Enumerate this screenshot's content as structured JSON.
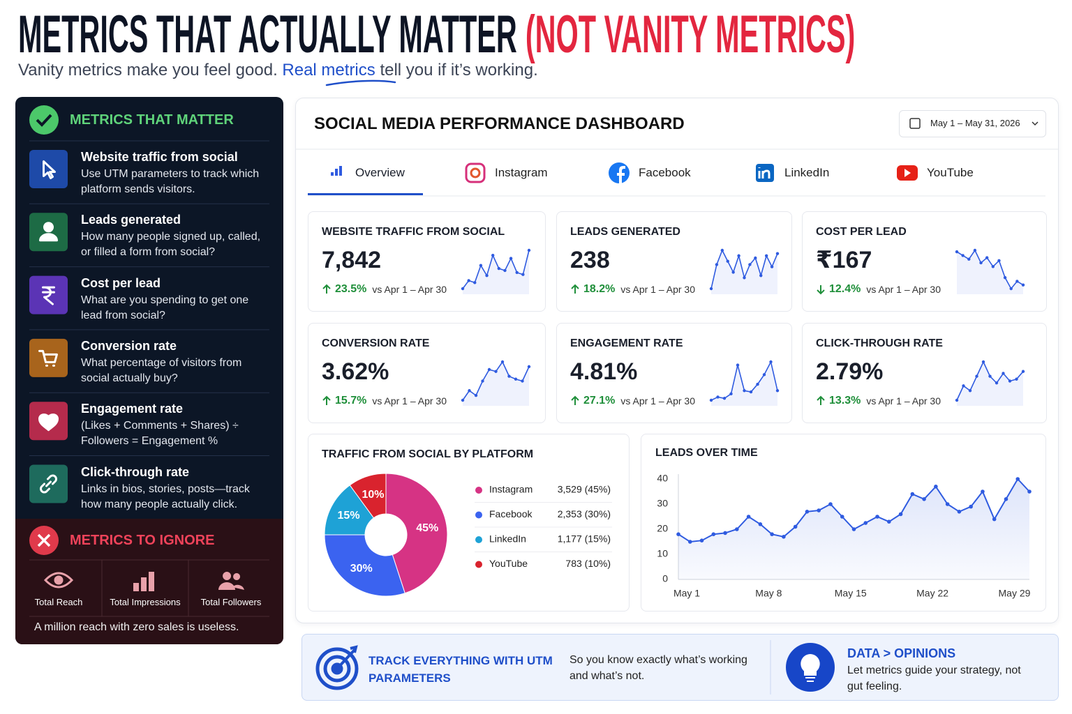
{
  "header": {
    "title": "METRICS THAT ACTUALLY MATTER",
    "title_accent": "(NOT VANITY METRICS)",
    "subtitle_start": "Vanity metrics make you feel good.",
    "subtitle_highlight": "Real metrics",
    "subtitle_end": "tell you if it’s working."
  },
  "matter": {
    "heading": "METRICS THAT MATTER",
    "items": [
      {
        "title": "Website traffic from social",
        "text": "Use UTM parameters to track which platform sends visitors."
      },
      {
        "title": "Leads generated",
        "text": "How many people signed up, called, or filled a form from social?"
      },
      {
        "title": "Cost per lead",
        "text": "What are you spending to get one lead from social?"
      },
      {
        "title": "Conversion rate",
        "text": "What percentage of visitors from social actually buy?"
      },
      {
        "title": "Engagement rate",
        "text": "(Likes + Comments + Shares) ÷ Followers = Engagement %"
      },
      {
        "title": "Click-through rate",
        "text": "Links in bios, stories, posts—track how many people actually click."
      }
    ]
  },
  "ignore": {
    "heading": "METRICS TO IGNORE",
    "items": [
      "Total Reach",
      "Total Impressions",
      "Total Followers"
    ],
    "note": "A million reach with zero sales is useless."
  },
  "dashboard": {
    "title": "SOCIAL MEDIA PERFORMANCE DASHBOARD",
    "date_range": "May 1 – May 31, 2026",
    "tabs": [
      "Overview",
      "Instagram",
      "Facebook",
      "LinkedIn",
      "YouTube"
    ],
    "active_tab": 0,
    "cards": [
      {
        "title": "WEBSITE TRAFFIC FROM SOCIAL",
        "value": "7,842",
        "change": "23.5%",
        "direction": "up",
        "compare": "vs Apr 1 – Apr 30"
      },
      {
        "title": "LEADS GENERATED",
        "value": "238",
        "change": "18.2%",
        "direction": "up",
        "compare": "vs Apr 1 – Apr 30"
      },
      {
        "title": "COST PER LEAD",
        "value": "₹167",
        "change": "12.4%",
        "direction": "down",
        "compare": "vs Apr 1 – Apr 30"
      },
      {
        "title": "CONVERSION RATE",
        "value": "3.62%",
        "change": "15.7%",
        "direction": "up",
        "compare": "vs Apr 1 – Apr 30"
      },
      {
        "title": "ENGAGEMENT RATE",
        "value": "4.81%",
        "change": "27.1%",
        "direction": "up",
        "compare": "vs Apr 1 – Apr 30"
      },
      {
        "title": "CLICK-THROUGH RATE",
        "value": "2.79%",
        "change": "13.3%",
        "direction": "up",
        "compare": "vs Apr 1 – Apr 30"
      }
    ]
  },
  "chart_data": [
    {
      "type": "sparkline",
      "color": "#2f5be0",
      "values": [
        22,
        30,
        28,
        45,
        35,
        55,
        42,
        40,
        52,
        38,
        36,
        60
      ]
    },
    {
      "type": "sparkline",
      "color": "#2f5be0",
      "values": [
        40,
        62,
        75,
        65,
        55,
        70,
        50,
        62,
        68,
        52,
        70,
        60,
        72
      ]
    },
    {
      "type": "sparkline",
      "color": "#2f5be0",
      "values": [
        70,
        65,
        60,
        72,
        55,
        62,
        50,
        58,
        35,
        20,
        30,
        25
      ]
    },
    {
      "type": "sparkline",
      "color": "#2f5be0",
      "values": [
        20,
        30,
        25,
        40,
        52,
        50,
        60,
        45,
        42,
        40,
        55
      ]
    },
    {
      "type": "sparkline",
      "color": "#2f5be0",
      "values": [
        15,
        20,
        18,
        25,
        70,
        30,
        28,
        40,
        55,
        75,
        30
      ]
    },
    {
      "type": "sparkline",
      "color": "#2f5be0",
      "values": [
        20,
        35,
        30,
        45,
        60,
        45,
        38,
        48,
        40,
        42,
        50
      ]
    },
    {
      "type": "donut",
      "title": "TRAFFIC FROM SOCIAL BY PLATFORM",
      "categories": [
        "Instagram",
        "Facebook",
        "LinkedIn",
        "YouTube"
      ],
      "values": [
        45,
        30,
        15,
        10
      ],
      "value_labels": [
        "45%",
        "30%",
        "15%",
        "10%"
      ],
      "colors": [
        "#d63384",
        "#3b63f0",
        "#1ea2d6",
        "#d9232e"
      ],
      "value_details": [
        "3,529 (45%)",
        "2,353 (30%)",
        "1,177 (15%)",
        "783 (10%)"
      ]
    },
    {
      "type": "line",
      "title": "LEADS OVER TIME",
      "color": "#2f5be0",
      "grid": false,
      "categories": [
        "May 1",
        null,
        null,
        null,
        null,
        null,
        null,
        "May 8",
        null,
        null,
        null,
        null,
        null,
        null,
        "May 15",
        null,
        null,
        null,
        null,
        null,
        null,
        "May 22",
        null,
        null,
        null,
        null,
        null,
        null,
        "May 29",
        null,
        null
      ],
      "values": [
        18,
        15,
        15.5,
        18,
        18.5,
        20,
        25,
        22,
        18,
        17,
        21,
        27,
        27.5,
        30,
        25,
        20,
        22.5,
        25,
        23,
        26,
        34,
        32,
        37,
        30,
        27,
        29,
        35,
        24,
        32,
        40,
        35
      ],
      "ylim": [
        0,
        40
      ],
      "yticks": [
        0,
        10,
        20,
        30,
        40
      ]
    }
  ],
  "footer": {
    "utm_title": "TRACK EVERYTHING WITH UTM PARAMETERS",
    "utm_text": "So you know exactly what’s working and what’s not.",
    "data_title": "DATA > OPINIONS",
    "data_text": "Let metrics guide your strategy, not gut feeling."
  }
}
